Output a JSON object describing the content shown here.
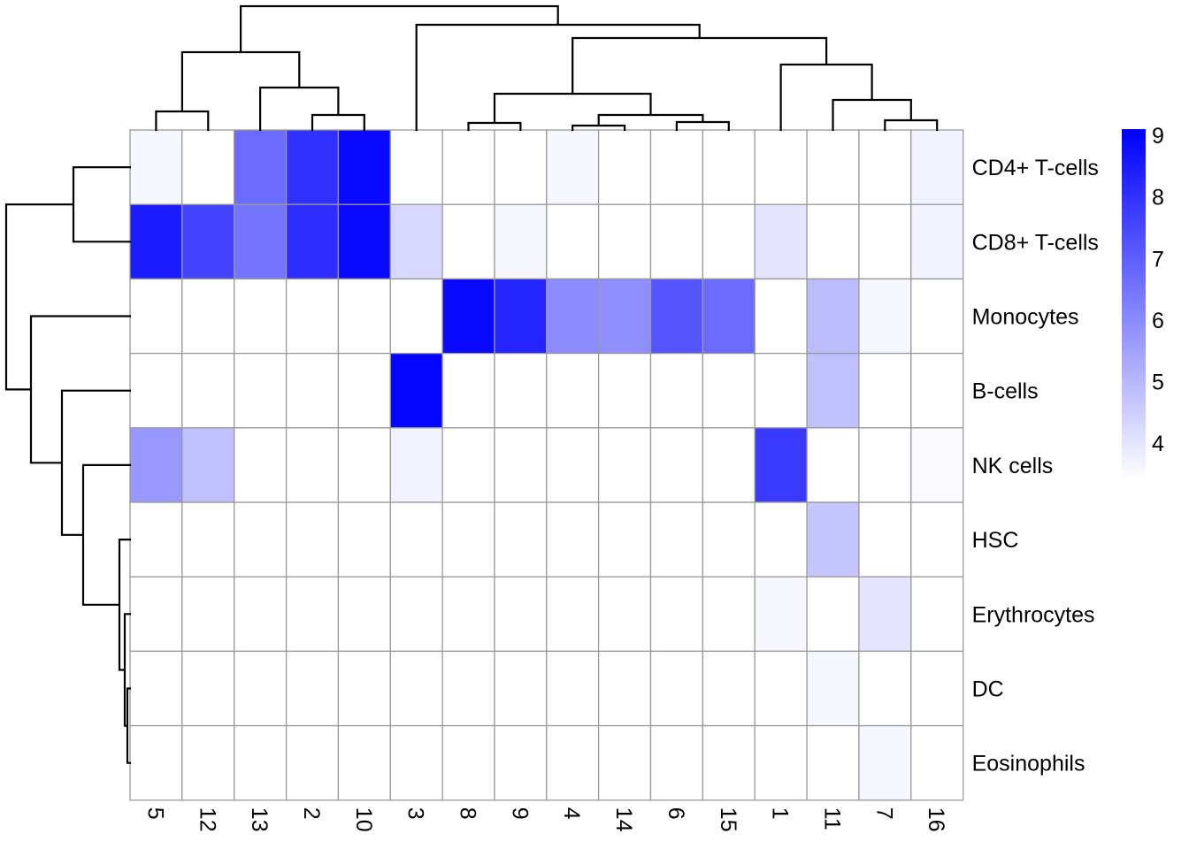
{
  "figure": {
    "description": "clustered heatmap of marker expression by cell type and cluster"
  },
  "chart_data": {
    "type": "heatmap",
    "title": "",
    "xlabel": "",
    "ylabel": "",
    "columns": [
      "5",
      "12",
      "13",
      "2",
      "10",
      "3",
      "8",
      "9",
      "4",
      "14",
      "6",
      "15",
      "1",
      "11",
      "7",
      "16"
    ],
    "rows": [
      "CD4+ T-cells",
      "CD8+ T-cells",
      "Monocytes",
      "B-cells",
      "NK cells",
      "HSC",
      "Erythrocytes",
      "DC",
      "Eosinophils"
    ],
    "values": [
      [
        3.6,
        3.4,
        6.7,
        8.0,
        8.9,
        3.4,
        3.4,
        3.4,
        3.6,
        3.4,
        3.4,
        3.4,
        3.4,
        3.4,
        3.4,
        3.7
      ],
      [
        8.5,
        7.6,
        6.5,
        8.1,
        8.9,
        4.3,
        3.4,
        3.6,
        3.4,
        3.4,
        3.4,
        3.4,
        4.0,
        3.4,
        3.4,
        3.7
      ],
      [
        3.4,
        3.4,
        3.4,
        3.4,
        3.4,
        3.4,
        8.9,
        8.3,
        6.0,
        5.9,
        7.2,
        6.7,
        3.4,
        4.9,
        3.6,
        3.4
      ],
      [
        3.4,
        3.4,
        3.4,
        3.4,
        3.4,
        9.0,
        3.4,
        3.4,
        3.4,
        3.4,
        3.4,
        3.4,
        3.4,
        4.8,
        3.4,
        3.4
      ],
      [
        5.7,
        4.8,
        3.4,
        3.4,
        3.4,
        3.7,
        3.4,
        3.4,
        3.4,
        3.4,
        3.4,
        3.4,
        7.8,
        3.4,
        3.4,
        3.5
      ],
      [
        3.4,
        3.4,
        3.4,
        3.4,
        3.4,
        3.4,
        3.4,
        3.4,
        3.4,
        3.4,
        3.4,
        3.4,
        3.4,
        4.7,
        3.4,
        3.4
      ],
      [
        3.4,
        3.4,
        3.4,
        3.4,
        3.4,
        3.4,
        3.4,
        3.4,
        3.4,
        3.4,
        3.4,
        3.4,
        3.6,
        3.4,
        4.0,
        3.4
      ],
      [
        3.4,
        3.4,
        3.4,
        3.4,
        3.4,
        3.4,
        3.4,
        3.4,
        3.4,
        3.4,
        3.4,
        3.4,
        3.4,
        3.6,
        3.4,
        3.4
      ],
      [
        3.4,
        3.4,
        3.4,
        3.4,
        3.4,
        3.4,
        3.4,
        3.4,
        3.4,
        3.4,
        3.4,
        3.4,
        3.4,
        3.4,
        3.6,
        3.4
      ]
    ],
    "color_scale": {
      "min_value": 3.4,
      "max_value": 9.1,
      "low_color": "#FFFFFF",
      "high_color": "#0000FF",
      "ticks": [
        9,
        8,
        7,
        6,
        5,
        4
      ],
      "legend_position": "right"
    },
    "column_dendrogram": [
      140,
      [
        88,
        [
          21,
          "5",
          "12"
        ],
        [
          48,
          "13",
          [
            17,
            "2",
            "10"
          ]
        ]
      ],
      [
        119,
        "3",
        [
          104,
          [
            41,
            [
              8,
              "8",
              "9"
            ],
            [
              17,
              [
                5,
                "4",
                "14"
              ],
              [
                9,
                "6",
                "15"
              ]
            ]
          ],
          [
            74,
            "1",
            [
              34,
              "11",
              [
                11,
                "7",
                "16"
              ]
            ]
          ]
        ]
      ]
    ],
    "row_dendrogram": [
      140,
      [
        64,
        "CD4+ T-cells",
        "CD8+ T-cells"
      ],
      [
        112,
        "Monocytes",
        [
          77,
          "B-cells",
          [
            53,
            "NK cells",
            [
              12,
              "HSC",
              [
                6,
                "Erythrocytes",
                [
                  3,
                  "DC",
                  "Eosinophils"
                ]
              ]
            ]
          ]
        ]
      ]
    ],
    "grid_color": "#999999",
    "dendrogram_color": "#000000",
    "label_color": "#000000"
  }
}
